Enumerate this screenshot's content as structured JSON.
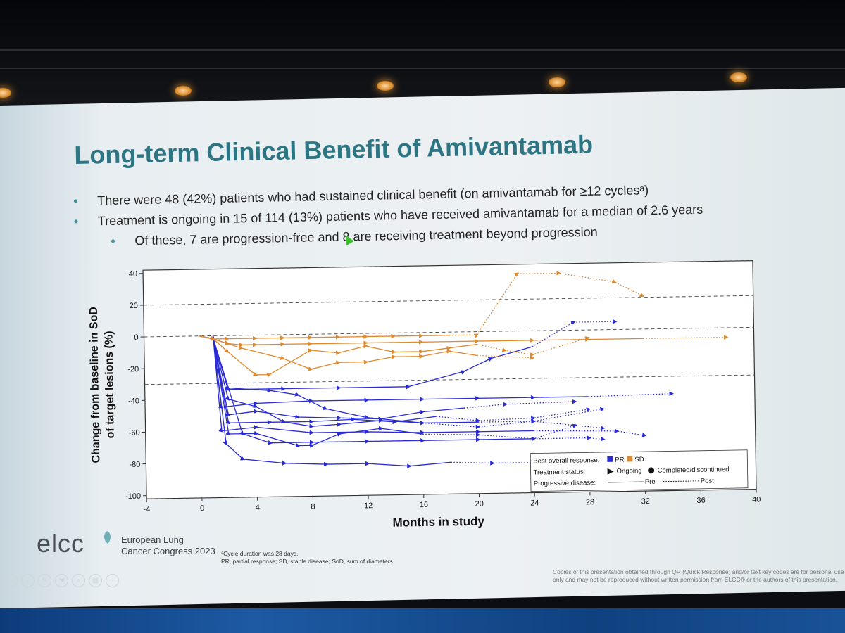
{
  "slide": {
    "title": "Long-term Clinical Benefit of Amivantamab",
    "bullets": [
      "There were 48 (42%) patients who had sustained clinical benefit (on amivantamab for ≥12 cyclesᵃ)",
      "Treatment is ongoing in 15 of 114 (13%) patients who have received amivantamab for a median of 2.6 years"
    ],
    "sub_bullet": "Of these, 7 are progression-free and 8 are receiving treatment beyond progression",
    "logo_text": "elcc",
    "congress_line1": "European Lung",
    "congress_line2": "Cancer Congress 2023",
    "footnote_line1": "ᵃCycle duration was 28 days.",
    "footnote_line2": "PR, partial response; SD, stable disease; SoD, sum of diameters.",
    "copyright_line1": "Copies of this presentation obtained through QR (Quick Response) and/or text key codes are for personal use",
    "copyright_line2": "only and may not be reproduced without written permission from ELCC® or the authors of this presentation."
  },
  "colors": {
    "pr": "#2b2bd6",
    "sd": "#e08a2e",
    "title": "#2d7582",
    "bullet": "#3d8b98"
  },
  "chart_data": {
    "type": "line",
    "title": "",
    "xlabel": "Months in study",
    "ylabel_line1": "Change from baseline in SoD",
    "ylabel_line2": "of target lesions (%)",
    "xlim": [
      -4,
      40
    ],
    "ylim": [
      -102,
      42
    ],
    "xticks": [
      -4,
      0,
      4,
      8,
      12,
      16,
      20,
      24,
      28,
      32,
      36,
      40
    ],
    "yticks": [
      40,
      20,
      0,
      -20,
      -40,
      -60,
      -80,
      -100
    ],
    "reference_lines": [
      20,
      0,
      -30
    ],
    "legend": {
      "best_response_label": "Best overall response:",
      "pr_label": "PR",
      "sd_label": "SD",
      "status_label": "Treatment status:",
      "ongoing_label": "Ongoing",
      "completed_label": "Completed/discontinued",
      "pd_label": "Progressive disease:",
      "pre_label": "Pre",
      "post_label": "Post"
    },
    "series": [
      {
        "response": "PR",
        "x": [
          0,
          1,
          1.5,
          4,
          8,
          12,
          16,
          20,
          24,
          30,
          32
        ],
        "y": [
          0,
          -2,
          -60,
          -58,
          -62,
          -62,
          -63,
          -63,
          -63,
          -64,
          -67
        ],
        "post_from": 9
      },
      {
        "response": "PR",
        "x": [
          0,
          1,
          1.5,
          4,
          8,
          12,
          16,
          20,
          24,
          28,
          34
        ],
        "y": [
          0,
          -2,
          -45,
          -43,
          -42,
          -42,
          -42,
          -42,
          -42,
          -42,
          -41
        ],
        "post_from": 10
      },
      {
        "response": "PR",
        "x": [
          0,
          1,
          1.8,
          3,
          6,
          9,
          12,
          15,
          18,
          21,
          24
        ],
        "y": [
          0,
          -2,
          -68,
          -78,
          -81,
          -82,
          -82,
          -84,
          -82,
          -83,
          -83
        ],
        "post_from": 9
      },
      {
        "response": "PR",
        "x": [
          0,
          1,
          2,
          6,
          10,
          15,
          19,
          21,
          24,
          27,
          30
        ],
        "y": [
          0,
          -2,
          -34,
          -34,
          -34,
          -34,
          -25,
          -17,
          -10,
          5,
          5
        ],
        "post_from": 9
      },
      {
        "response": "PR",
        "x": [
          0,
          1,
          2,
          5,
          8,
          11,
          14,
          17,
          20,
          24,
          28
        ],
        "y": [
          0,
          -2,
          -55,
          -55,
          -55,
          -54,
          -56,
          -53,
          -56,
          -55,
          -50
        ],
        "post_from": 8
      },
      {
        "response": "PR",
        "x": [
          0,
          1,
          2,
          5,
          7,
          9,
          12,
          16,
          20,
          24,
          29
        ],
        "y": [
          0,
          -2,
          -33,
          -35,
          -38,
          -47,
          -53,
          -57,
          -60,
          -57,
          -50
        ],
        "post_from": 8
      },
      {
        "response": "PR",
        "x": [
          0,
          1,
          2,
          4,
          6,
          8,
          10,
          13,
          16,
          20,
          24,
          29
        ],
        "y": [
          0,
          -2,
          -40,
          -45,
          -55,
          -58,
          -57,
          -55,
          -57,
          -57,
          -57,
          -62
        ],
        "post_from": 10
      },
      {
        "response": "PR",
        "x": [
          0,
          1,
          2,
          4,
          7,
          8,
          10,
          13,
          16,
          20,
          24,
          27
        ],
        "y": [
          0,
          -2,
          -62,
          -62,
          -70,
          -70,
          -63,
          -60,
          -64,
          -65,
          -68,
          -60
        ],
        "post_from": 9
      },
      {
        "response": "PR",
        "x": [
          0,
          1,
          3,
          5,
          8,
          12,
          16,
          20,
          24,
          28,
          29
        ],
        "y": [
          0,
          -2,
          -62,
          -68,
          -68,
          -68,
          -68,
          -68,
          -68,
          -68,
          -69
        ],
        "post_from": 9
      },
      {
        "response": "PR",
        "x": [
          0,
          1,
          2,
          4,
          7,
          10,
          13,
          16,
          19,
          22,
          27
        ],
        "y": [
          0,
          -2,
          -50,
          -48,
          -52,
          -53,
          -54,
          -50,
          -48,
          -46,
          -45
        ],
        "post_from": 9
      },
      {
        "response": "SD",
        "x": [
          0,
          1,
          2,
          3,
          4,
          6,
          8,
          12,
          16,
          20,
          24,
          28,
          32,
          38
        ],
        "y": [
          0,
          -2,
          -5,
          -6,
          -6,
          -6,
          -6,
          -6,
          -6,
          -6,
          -6,
          -6,
          -6,
          -6
        ],
        "post_from": 13
      },
      {
        "response": "SD",
        "x": [
          0,
          1,
          2,
          4,
          6,
          8,
          10,
          12,
          14,
          16,
          18,
          20,
          23,
          26,
          30,
          32
        ],
        "y": [
          0,
          -2,
          -2,
          -2,
          -2,
          -2,
          -2,
          -2,
          -2,
          -2,
          -2,
          -2,
          36,
          36,
          30,
          21
        ],
        "post_from": 11
      },
      {
        "response": "SD",
        "x": [
          0,
          1,
          2,
          4,
          5,
          8,
          10,
          12,
          14,
          16,
          18,
          20,
          22,
          24,
          28
        ],
        "y": [
          0,
          -2,
          -10,
          -25,
          -25,
          -10,
          -12,
          -8,
          -12,
          -12,
          -10,
          -8,
          -12,
          -15,
          -5
        ],
        "post_from": 12
      },
      {
        "response": "SD",
        "x": [
          0,
          1,
          2,
          3,
          6,
          8,
          10,
          12,
          14,
          16,
          18,
          20,
          24
        ],
        "y": [
          0,
          -2,
          -5,
          -8,
          -15,
          -22,
          -18,
          -18,
          -15,
          -15,
          -12,
          -15,
          -17
        ],
        "post_from": 12
      }
    ]
  }
}
